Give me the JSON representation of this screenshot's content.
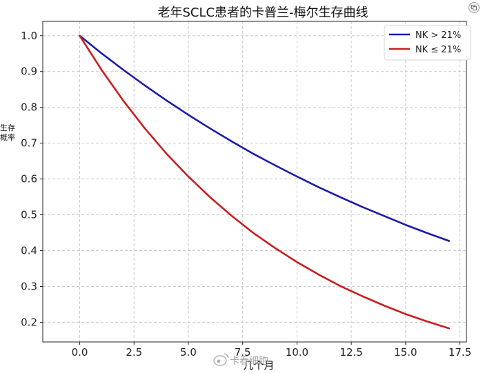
{
  "chart_data": {
    "type": "line",
    "title": "老年SCLC患者的卡普兰-梅尔生存曲线",
    "xlabel": "几个月",
    "ylabel": [
      "生存",
      "概率"
    ],
    "xlim": [
      -1.7,
      17.8
    ],
    "ylim": [
      0.145,
      1.04
    ],
    "xticks": [
      0.0,
      2.5,
      5.0,
      7.5,
      10.0,
      12.5,
      15.0,
      17.5
    ],
    "xtick_labels": [
      "0.0",
      "2.5",
      "5.0",
      "7.5",
      "10.0",
      "12.5",
      "15.0",
      "17.5"
    ],
    "yticks": [
      0.2,
      0.3,
      0.4,
      0.5,
      0.6,
      0.7,
      0.8,
      0.9,
      1.0
    ],
    "ytick_labels": [
      "0.2",
      "0.3",
      "0.4",
      "0.5",
      "0.6",
      "0.7",
      "0.8",
      "0.9",
      "1.0"
    ],
    "grid": true,
    "legend_position": "top-right",
    "x": [
      0,
      1,
      2,
      3,
      4,
      5,
      6,
      7,
      8,
      9,
      10,
      11,
      12,
      13,
      14,
      15,
      16,
      17
    ],
    "series": [
      {
        "name": "NK > 21%",
        "color": "#1a1aa6",
        "values": [
          1.0,
          0.951,
          0.905,
          0.861,
          0.819,
          0.779,
          0.741,
          0.705,
          0.67,
          0.638,
          0.607,
          0.577,
          0.549,
          0.522,
          0.497,
          0.472,
          0.449,
          0.427
        ]
      },
      {
        "name": "NK ≤ 21%",
        "color": "#c81e1e",
        "values": [
          1.0,
          0.905,
          0.819,
          0.741,
          0.67,
          0.607,
          0.549,
          0.497,
          0.449,
          0.407,
          0.368,
          0.333,
          0.301,
          0.273,
          0.247,
          0.223,
          0.202,
          0.183
        ]
      }
    ]
  },
  "watermark": {
    "text": "卡春细胞",
    "icon": "weibo-icon"
  },
  "corner_icon": "copy-icon"
}
